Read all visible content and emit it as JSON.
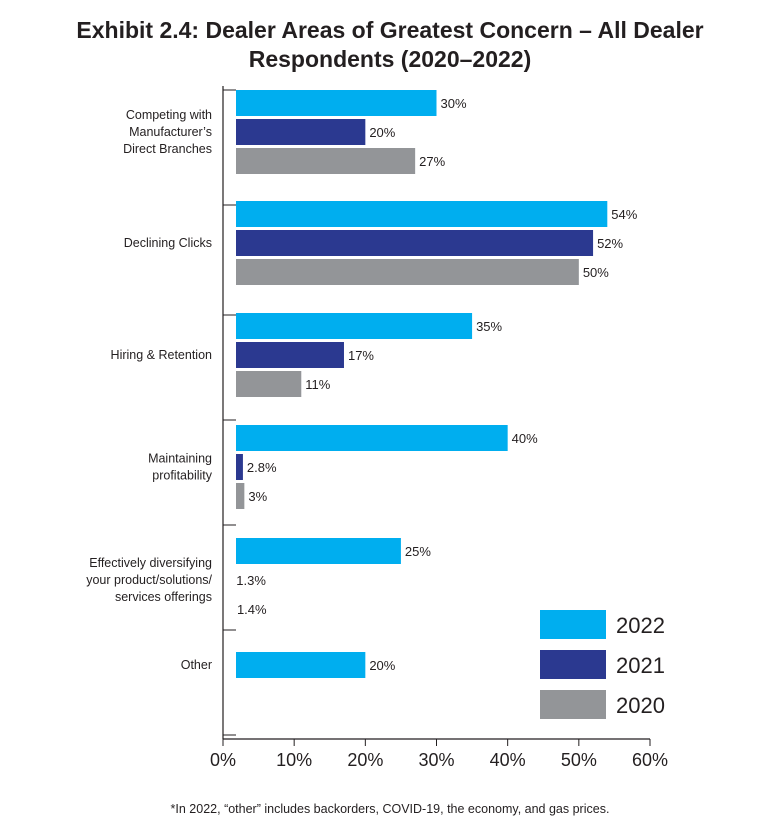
{
  "title_lines": [
    "Exhibit 2.4: Dealer Areas of Greatest Concern – All Dealer",
    "Respondents (2020–2022)"
  ],
  "footnote": "*In 2022, “other” includes backorders, COVID-19, the economy, and gas prices.",
  "colors": {
    "2022": "#00aeef",
    "2021": "#2b3990",
    "2020": "#939598",
    "axis": "#231f20",
    "text": "#231f20"
  },
  "chart_data": {
    "type": "bar",
    "orientation": "horizontal",
    "categories": [
      [
        "Competing with",
        "Manufacturer’s",
        "Direct Branches"
      ],
      [
        "Declining Clicks"
      ],
      [
        "Hiring & Retention"
      ],
      [
        "Maintaining",
        "profitability"
      ],
      [
        "Effectively diversifying",
        "your product/solutions/",
        "services offerings"
      ],
      [
        "Other"
      ]
    ],
    "series": [
      {
        "name": "2022",
        "values": [
          30,
          54,
          35,
          40,
          25,
          20
        ],
        "labels": [
          "30%",
          "54%",
          "35%",
          "40%",
          "25%",
          "20%"
        ]
      },
      {
        "name": "2021",
        "values": [
          20,
          52,
          17,
          2.8,
          1.3,
          null
        ],
        "labels": [
          "20%",
          "52%",
          "17%",
          "2.8%",
          "1.3%",
          null
        ]
      },
      {
        "name": "2020",
        "values": [
          27,
          50,
          11,
          3,
          1.4,
          null
        ],
        "labels": [
          "27%",
          "50%",
          "11%",
          "3%",
          "1.4%",
          null
        ]
      }
    ],
    "xlim": [
      0,
      60
    ],
    "xticks": [
      "0%",
      "10%",
      "20%",
      "30%",
      "40%",
      "50%",
      "60%"
    ],
    "grid": false,
    "legend": {
      "position": "bottom-right",
      "items": [
        "2022",
        "2021",
        "2020"
      ]
    }
  }
}
